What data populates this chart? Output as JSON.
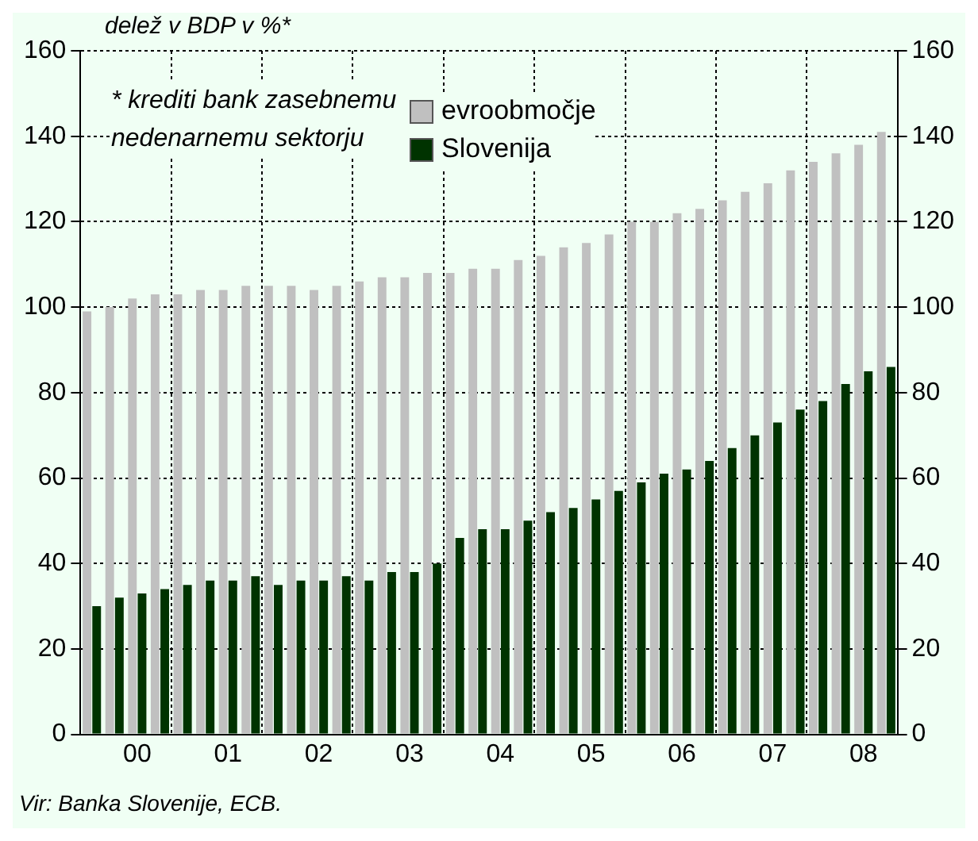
{
  "chart_data": {
    "type": "bar",
    "ylabel": "delež v BDP v %*",
    "categories": [
      null,
      null,
      "00",
      null,
      null,
      null,
      "01",
      null,
      null,
      null,
      "02",
      null,
      null,
      null,
      "03",
      null,
      null,
      null,
      "04",
      null,
      null,
      null,
      "05",
      null,
      null,
      null,
      "06",
      null,
      null,
      null,
      "07",
      null,
      null,
      null,
      "08",
      null
    ],
    "series": [
      {
        "name": "evroobmočje",
        "color": "#c0c0c0",
        "values": [
          99,
          100,
          102,
          103,
          103,
          104,
          104,
          105,
          105,
          105,
          104,
          105,
          106,
          107,
          107,
          108,
          108,
          109,
          109,
          111,
          112,
          114,
          115,
          117,
          120,
          120,
          122,
          123,
          125,
          127,
          129,
          132,
          134,
          136,
          138,
          141
        ]
      },
      {
        "name": "Slovenija",
        "color": "#003300",
        "values": [
          30,
          32,
          33,
          34,
          35,
          36,
          36,
          37,
          35,
          36,
          36,
          37,
          36,
          38,
          38,
          40,
          46,
          48,
          48,
          50,
          52,
          53,
          55,
          57,
          59,
          61,
          62,
          64,
          67,
          70,
          73,
          76,
          78,
          82,
          85,
          86
        ]
      }
    ],
    "ylim": [
      0,
      160
    ],
    "yticks": [
      0,
      20,
      40,
      60,
      80,
      100,
      120,
      140,
      160
    ],
    "y2lim": [
      0,
      160
    ],
    "y2ticks": [
      0,
      20,
      40,
      60,
      80,
      100,
      120,
      140,
      160
    ],
    "grid": true,
    "legend": "top",
    "annotations": [
      "* krediti bank zasebnemu nedenarnemu sektorju",
      "Vir: Banka Slovenije, ECB."
    ]
  }
}
